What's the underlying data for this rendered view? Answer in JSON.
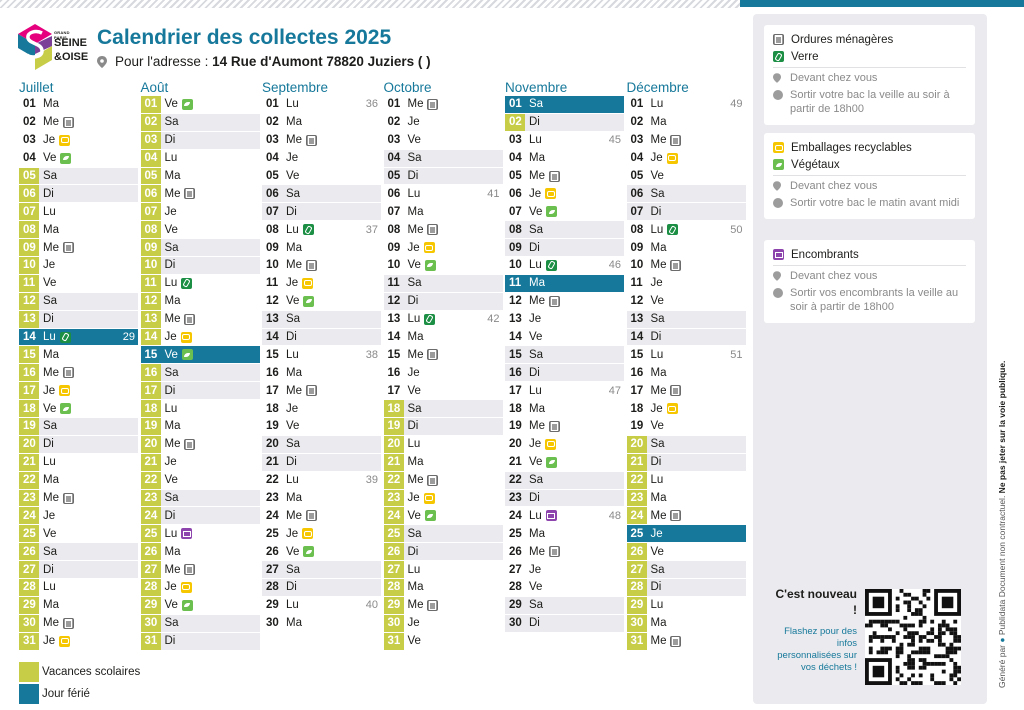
{
  "header": {
    "title": "Calendrier des collectes 2025",
    "address_label": "Pour l'adresse :",
    "address_value": "14  Rue d'Aumont 78820 Juziers ( )"
  },
  "logo": {
    "line1": "GRAND PARIS",
    "line2": "SEINE",
    "line3": "&OISE"
  },
  "colors": {
    "accent": "#16789a",
    "vacances": "#c8cd47",
    "ferie": "#16789a"
  },
  "months": [
    {
      "name": "Juillet",
      "days": [
        [
          "01",
          "Ma",
          "",
          "",
          ""
        ],
        [
          "02",
          "Me",
          "om",
          "",
          ""
        ],
        [
          "03",
          "Je",
          "em",
          "",
          ""
        ],
        [
          "04",
          "Ve",
          "vg",
          "",
          ""
        ],
        [
          "05",
          "Sa",
          "",
          "",
          "v"
        ],
        [
          "06",
          "Di",
          "",
          "",
          "v"
        ],
        [
          "07",
          "Lu",
          "",
          "",
          "v"
        ],
        [
          "08",
          "Ma",
          "",
          "",
          "v"
        ],
        [
          "09",
          "Me",
          "om",
          "",
          "v"
        ],
        [
          "10",
          "Je",
          "",
          "",
          "v"
        ],
        [
          "11",
          "Ve",
          "",
          "",
          "v"
        ],
        [
          "12",
          "Sa",
          "",
          "",
          "v"
        ],
        [
          "13",
          "Di",
          "",
          "",
          "v"
        ],
        [
          "14",
          "Lu",
          "ve",
          "29",
          "h"
        ],
        [
          "15",
          "Ma",
          "",
          "",
          "v"
        ],
        [
          "16",
          "Me",
          "om",
          "",
          "v"
        ],
        [
          "17",
          "Je",
          "em",
          "",
          "v"
        ],
        [
          "18",
          "Ve",
          "vg",
          "",
          "v"
        ],
        [
          "19",
          "Sa",
          "",
          "",
          "v"
        ],
        [
          "20",
          "Di",
          "",
          "",
          "v"
        ],
        [
          "21",
          "Lu",
          "",
          "",
          "v"
        ],
        [
          "22",
          "Ma",
          "",
          "",
          "v"
        ],
        [
          "23",
          "Me",
          "om",
          "",
          "v"
        ],
        [
          "24",
          "Je",
          "",
          "",
          "v"
        ],
        [
          "25",
          "Ve",
          "",
          "",
          "v"
        ],
        [
          "26",
          "Sa",
          "",
          "",
          "v"
        ],
        [
          "27",
          "Di",
          "",
          "",
          "v"
        ],
        [
          "28",
          "Lu",
          "",
          "",
          "v"
        ],
        [
          "29",
          "Ma",
          "",
          "",
          "v"
        ],
        [
          "30",
          "Me",
          "om",
          "",
          "v"
        ],
        [
          "31",
          "Je",
          "em",
          "",
          "v"
        ]
      ]
    },
    {
      "name": "Août",
      "days": [
        [
          "01",
          "Ve",
          "vg",
          "",
          "v"
        ],
        [
          "02",
          "Sa",
          "",
          "",
          "v"
        ],
        [
          "03",
          "Di",
          "",
          "",
          "v"
        ],
        [
          "04",
          "Lu",
          "",
          "",
          "v"
        ],
        [
          "05",
          "Ma",
          "",
          "",
          "v"
        ],
        [
          "06",
          "Me",
          "om",
          "",
          "v"
        ],
        [
          "07",
          "Je",
          "",
          "",
          "v"
        ],
        [
          "08",
          "Ve",
          "",
          "",
          "v"
        ],
        [
          "09",
          "Sa",
          "",
          "",
          "v"
        ],
        [
          "10",
          "Di",
          "",
          "",
          "v"
        ],
        [
          "11",
          "Lu",
          "ve",
          "",
          "v"
        ],
        [
          "12",
          "Ma",
          "",
          "",
          "v"
        ],
        [
          "13",
          "Me",
          "om",
          "",
          "v"
        ],
        [
          "14",
          "Je",
          "em",
          "",
          "v"
        ],
        [
          "15",
          "Ve",
          "vg",
          "",
          "h"
        ],
        [
          "16",
          "Sa",
          "",
          "",
          "v"
        ],
        [
          "17",
          "Di",
          "",
          "",
          "v"
        ],
        [
          "18",
          "Lu",
          "",
          "",
          "v"
        ],
        [
          "19",
          "Ma",
          "",
          "",
          "v"
        ],
        [
          "20",
          "Me",
          "om",
          "",
          "v"
        ],
        [
          "21",
          "Je",
          "",
          "",
          "v"
        ],
        [
          "22",
          "Ve",
          "",
          "",
          "v"
        ],
        [
          "23",
          "Sa",
          "",
          "",
          "v"
        ],
        [
          "24",
          "Di",
          "",
          "",
          "v"
        ],
        [
          "25",
          "Lu",
          "en",
          "",
          "v"
        ],
        [
          "26",
          "Ma",
          "",
          "",
          "v"
        ],
        [
          "27",
          "Me",
          "om",
          "",
          "v"
        ],
        [
          "28",
          "Je",
          "em",
          "",
          "v"
        ],
        [
          "29",
          "Ve",
          "vg",
          "",
          "v"
        ],
        [
          "30",
          "Sa",
          "",
          "",
          "v"
        ],
        [
          "31",
          "Di",
          "",
          "",
          "v"
        ]
      ]
    },
    {
      "name": "Septembre",
      "days": [
        [
          "01",
          "Lu",
          "",
          "36",
          ""
        ],
        [
          "02",
          "Ma",
          "",
          "",
          ""
        ],
        [
          "03",
          "Me",
          "om",
          "",
          ""
        ],
        [
          "04",
          "Je",
          "",
          "",
          ""
        ],
        [
          "05",
          "Ve",
          "",
          "",
          ""
        ],
        [
          "06",
          "Sa",
          "",
          "",
          ""
        ],
        [
          "07",
          "Di",
          "",
          "",
          ""
        ],
        [
          "08",
          "Lu",
          "ve",
          "37",
          ""
        ],
        [
          "09",
          "Ma",
          "",
          "",
          ""
        ],
        [
          "10",
          "Me",
          "om",
          "",
          ""
        ],
        [
          "11",
          "Je",
          "em",
          "",
          ""
        ],
        [
          "12",
          "Ve",
          "vg",
          "",
          ""
        ],
        [
          "13",
          "Sa",
          "",
          "",
          ""
        ],
        [
          "14",
          "Di",
          "",
          "",
          ""
        ],
        [
          "15",
          "Lu",
          "",
          "38",
          ""
        ],
        [
          "16",
          "Ma",
          "",
          "",
          ""
        ],
        [
          "17",
          "Me",
          "om",
          "",
          ""
        ],
        [
          "18",
          "Je",
          "",
          "",
          ""
        ],
        [
          "19",
          "Ve",
          "",
          "",
          ""
        ],
        [
          "20",
          "Sa",
          "",
          "",
          ""
        ],
        [
          "21",
          "Di",
          "",
          "",
          ""
        ],
        [
          "22",
          "Lu",
          "",
          "39",
          ""
        ],
        [
          "23",
          "Ma",
          "",
          "",
          ""
        ],
        [
          "24",
          "Me",
          "om",
          "",
          ""
        ],
        [
          "25",
          "Je",
          "em",
          "",
          ""
        ],
        [
          "26",
          "Ve",
          "vg",
          "",
          ""
        ],
        [
          "27",
          "Sa",
          "",
          "",
          ""
        ],
        [
          "28",
          "Di",
          "",
          "",
          ""
        ],
        [
          "29",
          "Lu",
          "",
          "40",
          ""
        ],
        [
          "30",
          "Ma",
          "",
          "",
          ""
        ]
      ]
    },
    {
      "name": "Octobre",
      "days": [
        [
          "01",
          "Me",
          "om",
          "",
          ""
        ],
        [
          "02",
          "Je",
          "",
          "",
          ""
        ],
        [
          "03",
          "Ve",
          "",
          "",
          ""
        ],
        [
          "04",
          "Sa",
          "",
          "",
          ""
        ],
        [
          "05",
          "Di",
          "",
          "",
          ""
        ],
        [
          "06",
          "Lu",
          "",
          "41",
          ""
        ],
        [
          "07",
          "Ma",
          "",
          "",
          ""
        ],
        [
          "08",
          "Me",
          "om",
          "",
          ""
        ],
        [
          "09",
          "Je",
          "em",
          "",
          ""
        ],
        [
          "10",
          "Ve",
          "vg",
          "",
          ""
        ],
        [
          "11",
          "Sa",
          "",
          "",
          ""
        ],
        [
          "12",
          "Di",
          "",
          "",
          ""
        ],
        [
          "13",
          "Lu",
          "ve",
          "42",
          ""
        ],
        [
          "14",
          "Ma",
          "",
          "",
          ""
        ],
        [
          "15",
          "Me",
          "om",
          "",
          ""
        ],
        [
          "16",
          "Je",
          "",
          "",
          ""
        ],
        [
          "17",
          "Ve",
          "",
          "",
          ""
        ],
        [
          "18",
          "Sa",
          "",
          "",
          "v"
        ],
        [
          "19",
          "Di",
          "",
          "",
          "v"
        ],
        [
          "20",
          "Lu",
          "",
          "",
          "v"
        ],
        [
          "21",
          "Ma",
          "",
          "",
          "v"
        ],
        [
          "22",
          "Me",
          "om",
          "",
          "v"
        ],
        [
          "23",
          "Je",
          "em",
          "",
          "v"
        ],
        [
          "24",
          "Ve",
          "vg",
          "",
          "v"
        ],
        [
          "25",
          "Sa",
          "",
          "",
          "v"
        ],
        [
          "26",
          "Di",
          "",
          "",
          "v"
        ],
        [
          "27",
          "Lu",
          "",
          "",
          "v"
        ],
        [
          "28",
          "Ma",
          "",
          "",
          "v"
        ],
        [
          "29",
          "Me",
          "om",
          "",
          "v"
        ],
        [
          "30",
          "Je",
          "",
          "",
          "v"
        ],
        [
          "31",
          "Ve",
          "",
          "",
          "v"
        ]
      ]
    },
    {
      "name": "Novembre",
      "days": [
        [
          "01",
          "Sa",
          "",
          "",
          "h"
        ],
        [
          "02",
          "Di",
          "",
          "",
          "v"
        ],
        [
          "03",
          "Lu",
          "",
          "45",
          ""
        ],
        [
          "04",
          "Ma",
          "",
          "",
          ""
        ],
        [
          "05",
          "Me",
          "om",
          "",
          ""
        ],
        [
          "06",
          "Je",
          "em",
          "",
          ""
        ],
        [
          "07",
          "Ve",
          "vg",
          "",
          ""
        ],
        [
          "08",
          "Sa",
          "",
          "",
          ""
        ],
        [
          "09",
          "Di",
          "",
          "",
          ""
        ],
        [
          "10",
          "Lu",
          "ve",
          "46",
          ""
        ],
        [
          "11",
          "Ma",
          "",
          "",
          "h"
        ],
        [
          "12",
          "Me",
          "om",
          "",
          ""
        ],
        [
          "13",
          "Je",
          "",
          "",
          ""
        ],
        [
          "14",
          "Ve",
          "",
          "",
          ""
        ],
        [
          "15",
          "Sa",
          "",
          "",
          ""
        ],
        [
          "16",
          "Di",
          "",
          "",
          ""
        ],
        [
          "17",
          "Lu",
          "",
          "47",
          ""
        ],
        [
          "18",
          "Ma",
          "",
          "",
          ""
        ],
        [
          "19",
          "Me",
          "om",
          "",
          ""
        ],
        [
          "20",
          "Je",
          "em",
          "",
          ""
        ],
        [
          "21",
          "Ve",
          "vg",
          "",
          ""
        ],
        [
          "22",
          "Sa",
          "",
          "",
          ""
        ],
        [
          "23",
          "Di",
          "",
          "",
          ""
        ],
        [
          "24",
          "Lu",
          "en",
          "48",
          ""
        ],
        [
          "25",
          "Ma",
          "",
          "",
          ""
        ],
        [
          "26",
          "Me",
          "om",
          "",
          ""
        ],
        [
          "27",
          "Je",
          "",
          "",
          ""
        ],
        [
          "28",
          "Ve",
          "",
          "",
          ""
        ],
        [
          "29",
          "Sa",
          "",
          "",
          ""
        ],
        [
          "30",
          "Di",
          "",
          "",
          ""
        ]
      ]
    },
    {
      "name": "Décembre",
      "days": [
        [
          "01",
          "Lu",
          "",
          "49",
          ""
        ],
        [
          "02",
          "Ma",
          "",
          "",
          ""
        ],
        [
          "03",
          "Me",
          "om",
          "",
          ""
        ],
        [
          "04",
          "Je",
          "em",
          "",
          ""
        ],
        [
          "05",
          "Ve",
          "",
          "",
          ""
        ],
        [
          "06",
          "Sa",
          "",
          "",
          ""
        ],
        [
          "07",
          "Di",
          "",
          "",
          ""
        ],
        [
          "08",
          "Lu",
          "ve",
          "50",
          ""
        ],
        [
          "09",
          "Ma",
          "",
          "",
          ""
        ],
        [
          "10",
          "Me",
          "om",
          "",
          ""
        ],
        [
          "11",
          "Je",
          "",
          "",
          ""
        ],
        [
          "12",
          "Ve",
          "",
          "",
          ""
        ],
        [
          "13",
          "Sa",
          "",
          "",
          ""
        ],
        [
          "14",
          "Di",
          "",
          "",
          ""
        ],
        [
          "15",
          "Lu",
          "",
          "51",
          ""
        ],
        [
          "16",
          "Ma",
          "",
          "",
          ""
        ],
        [
          "17",
          "Me",
          "om",
          "",
          ""
        ],
        [
          "18",
          "Je",
          "em",
          "",
          ""
        ],
        [
          "19",
          "Ve",
          "",
          "",
          ""
        ],
        [
          "20",
          "Sa",
          "",
          "",
          "v"
        ],
        [
          "21",
          "Di",
          "",
          "",
          "v"
        ],
        [
          "22",
          "Lu",
          "",
          "",
          "v"
        ],
        [
          "23",
          "Ma",
          "",
          "",
          "v"
        ],
        [
          "24",
          "Me",
          "om",
          "",
          "v"
        ],
        [
          "25",
          "Je",
          "",
          "",
          "h"
        ],
        [
          "26",
          "Ve",
          "",
          "",
          "v"
        ],
        [
          "27",
          "Sa",
          "",
          "",
          "v"
        ],
        [
          "28",
          "Di",
          "",
          "",
          "v"
        ],
        [
          "29",
          "Lu",
          "",
          "",
          "v"
        ],
        [
          "30",
          "Ma",
          "",
          "",
          "v"
        ],
        [
          "31",
          "Me",
          "om",
          "",
          "v"
        ]
      ]
    }
  ],
  "legend": {
    "vacances": "Vacances scolaires",
    "ferie": "Jour férié"
  },
  "info": {
    "card1": {
      "t1": "Ordures ménagères",
      "t2": "Verre",
      "s1": "Devant chez vous",
      "s2": "Sortir votre bac la veille au soir à partir de 18h00"
    },
    "card2": {
      "t1": "Emballages recyclables",
      "t2": "Végétaux",
      "s1": "Devant chez vous",
      "s2": "Sortir votre bac le matin avant midi"
    },
    "card3": {
      "t1": "Encombrants",
      "s1": "Devant chez vous",
      "s2": "Sortir vos encombrants la veille au soir à partir de 18h00"
    }
  },
  "promo": {
    "title": "C'est nouveau !",
    "desc": "Flashez pour des infos personnalisées sur vos déchets !"
  },
  "footer": {
    "gen": "Généré par",
    "brand": "Publidata",
    "disclaimer": "Document non contractuel.",
    "warning": "Ne pas jeter sur la voie publique."
  }
}
